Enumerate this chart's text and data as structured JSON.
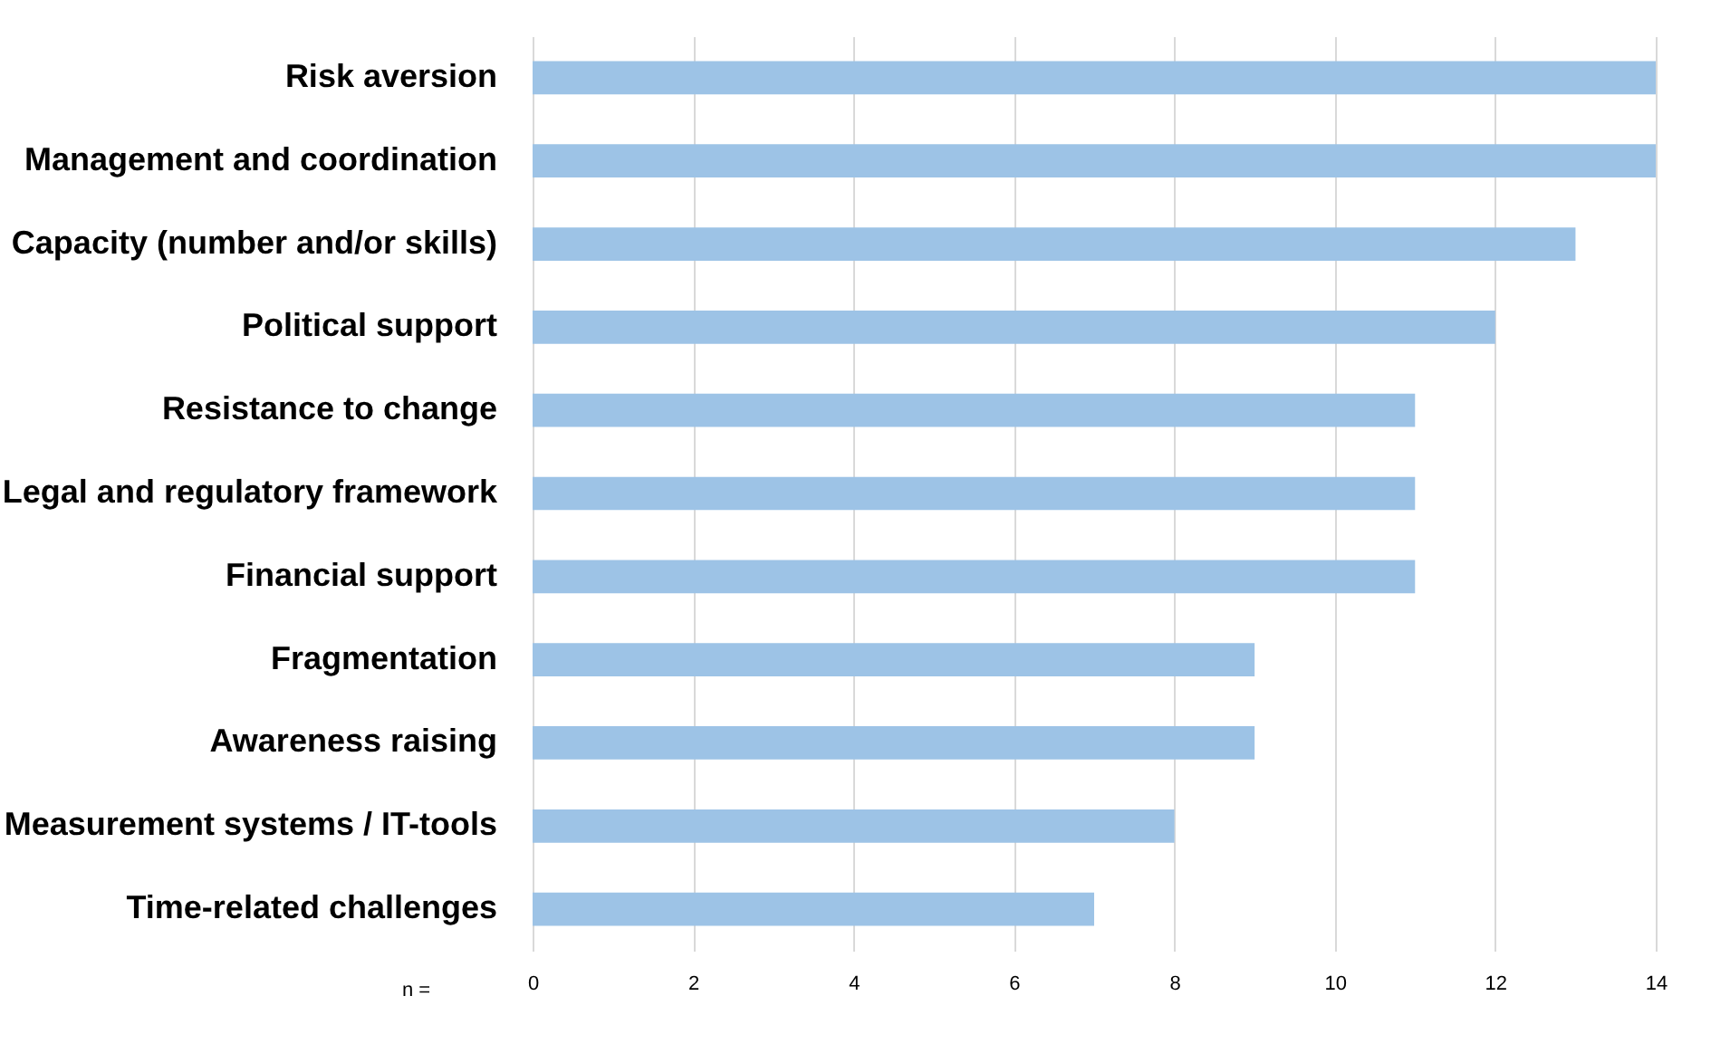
{
  "chart_data": {
    "type": "bar",
    "orientation": "horizontal",
    "categories": [
      "Risk aversion",
      "Management and coordination",
      "Capacity (number and/or skills)",
      "Political support",
      "Resistance to change",
      "Legal and regulatory framework",
      "Financial support",
      "Fragmentation",
      "Awareness raising",
      "Measurement systems / IT-tools",
      "Time-related challenges"
    ],
    "values": [
      14,
      14,
      13,
      12,
      11,
      11,
      11,
      9,
      9,
      8,
      7
    ],
    "color": "#9dc3e6",
    "xlim": [
      0,
      14
    ],
    "xticks": [
      0,
      2,
      4,
      6,
      8,
      10,
      12,
      14
    ],
    "grid": "x",
    "annotations": [
      "n ="
    ]
  }
}
